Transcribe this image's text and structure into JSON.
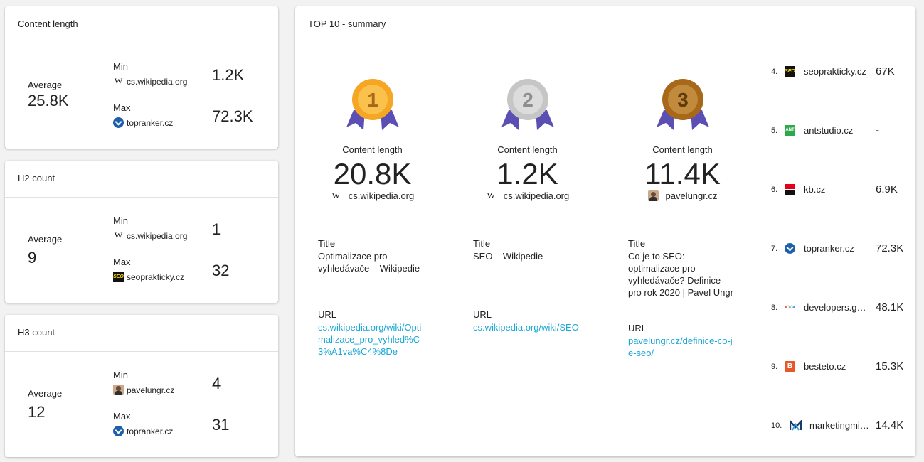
{
  "content_length": {
    "title": "Content length",
    "avg_label": "Average",
    "avg_value": "25.8K",
    "min_label": "Min",
    "min_site": "cs.wikipedia.org",
    "min_value": "1.2K",
    "max_label": "Max",
    "max_site": "topranker.cz",
    "max_value": "72.3K"
  },
  "h2_count": {
    "title": "H2 count",
    "avg_label": "Average",
    "avg_value": "9",
    "min_label": "Min",
    "min_site": "cs.wikipedia.org",
    "min_value": "1",
    "max_label": "Max",
    "max_site": "seoprakticky.cz",
    "max_value": "32"
  },
  "h3_count": {
    "title": "H3 count",
    "avg_label": "Average",
    "avg_value": "12",
    "min_label": "Min",
    "min_site": "pavelungr.cz",
    "min_value": "4",
    "max_label": "Max",
    "max_site": "topranker.cz",
    "max_value": "31"
  },
  "top10": {
    "title": "TOP 10 - summary",
    "podium": [
      {
        "rank": "1",
        "medal_color": "#f5a623",
        "metric_label": "Content length",
        "value": "20.8K",
        "site": "cs.wikipedia.org",
        "title_label": "Title",
        "title": "Optimalizace pro vyhledávače – Wikipedie",
        "url_label": "URL",
        "url": "cs.wikipedia.org/wiki/Optimalizace_pro_vyhled%C3%A1va%C4%8De"
      },
      {
        "rank": "2",
        "medal_color": "#c6c6c6",
        "metric_label": "Content length",
        "value": "1.2K",
        "site": "cs.wikipedia.org",
        "title_label": "Title",
        "title": "SEO – Wikipedie",
        "url_label": "URL",
        "url": "cs.wikipedia.org/wiki/SEO"
      },
      {
        "rank": "3",
        "medal_color": "#a8681a",
        "metric_label": "Content length",
        "value": "11.4K",
        "site": "pavelungr.cz",
        "title_label": "Title",
        "title": "Co je to SEO: optimalizace pro vyhledávače? Definice pro rok 2020 | Pavel Ungr",
        "url_label": "URL",
        "url": "pavelungr.cz/definice-co-je-seo/"
      }
    ],
    "ribbon_color": "#5b4fb3",
    "list": [
      {
        "rank": "4.",
        "domain": "seoprakticky.cz",
        "value": "67K",
        "icon": "seo-icon"
      },
      {
        "rank": "5.",
        "domain": "antstudio.cz",
        "value": "-",
        "icon": "ant-icon"
      },
      {
        "rank": "6.",
        "domain": "kb.cz",
        "value": "6.9K",
        "icon": "kb-icon"
      },
      {
        "rank": "7.",
        "domain": "topranker.cz",
        "value": "72.3K",
        "icon": "topranker-icon"
      },
      {
        "rank": "8.",
        "domain": "developers.google.com",
        "value": "48.1K",
        "icon": "developers-icon"
      },
      {
        "rank": "9.",
        "domain": "besteto.cz",
        "value": "15.3K",
        "icon": "besteto-icon"
      },
      {
        "rank": "10.",
        "domain": "marketingmind.cz",
        "value": "14.4K",
        "icon": "marketingmind-icon"
      }
    ]
  }
}
